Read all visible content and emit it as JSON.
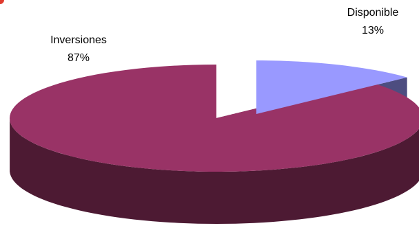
{
  "chart_data": {
    "type": "pie",
    "style": "3d-exploded",
    "title": "",
    "categories": [
      "Inversiones",
      "Disponible"
    ],
    "values": [
      87,
      13
    ],
    "labels": [
      {
        "name": "Inversiones",
        "percent": "87%"
      },
      {
        "name": "Disponible",
        "percent": "13%"
      }
    ],
    "colors": {
      "Inversiones": {
        "top": "#993366",
        "side": "#4d1a33"
      },
      "Disponible": {
        "top": "#9999ff",
        "side": "#4d4d80"
      }
    },
    "legend": "none"
  }
}
